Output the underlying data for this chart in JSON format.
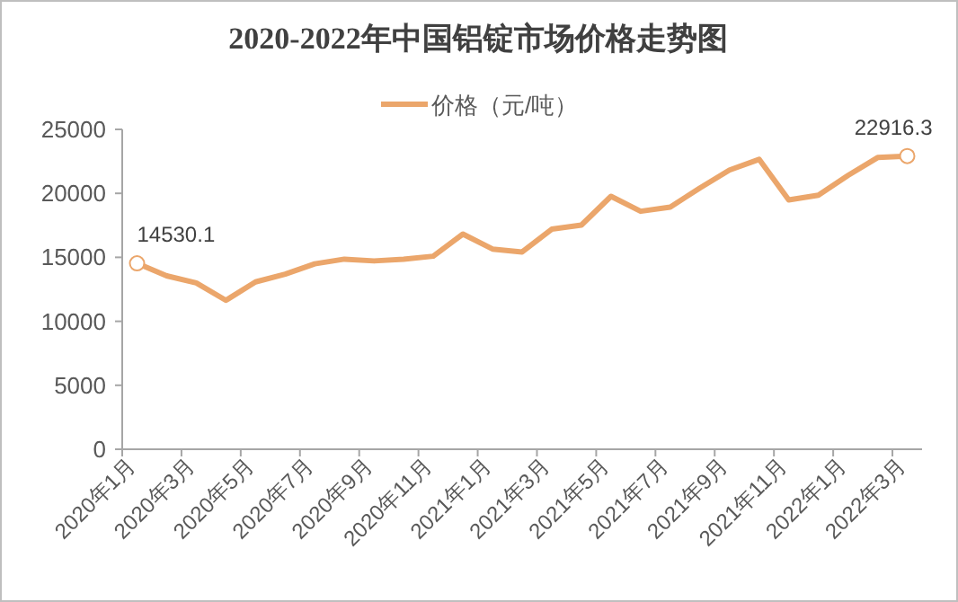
{
  "chart_data": {
    "type": "line",
    "title": "2020-2022年中国铝锭市场价格走势图",
    "categories": [
      "2020年1月",
      null,
      "2020年3月",
      null,
      "2020年5月",
      null,
      "2020年7月",
      null,
      "2020年9月",
      null,
      "2020年11月",
      null,
      "2021年1月",
      null,
      "2021年3月",
      null,
      "2021年5月",
      null,
      "2021年7月",
      null,
      "2021年9月",
      null,
      "2021年11月",
      null,
      "2022年1月",
      null,
      "2022年3月"
    ],
    "series": [
      {
        "name": "价格（元/吨）",
        "color": "#eba66b",
        "values": [
          14530.1,
          13550,
          13000,
          11640,
          13080,
          13690,
          14490,
          14860,
          14720,
          14860,
          15090,
          16820,
          15650,
          15420,
          17200,
          17520,
          19770,
          18600,
          18930,
          20420,
          21820,
          22660,
          19490,
          19860,
          21400,
          22800,
          22916.3
        ],
        "value_labels": [
          "14530.1",
          null,
          null,
          null,
          null,
          null,
          null,
          null,
          null,
          null,
          null,
          null,
          null,
          null,
          null,
          null,
          null,
          null,
          null,
          null,
          null,
          null,
          null,
          null,
          null,
          null,
          "22916.3"
        ]
      }
    ],
    "ylim": [
      0,
      25000
    ],
    "yticks": [
      0,
      5000,
      10000,
      15000,
      20000,
      25000
    ],
    "grid": false,
    "legend": "top"
  }
}
